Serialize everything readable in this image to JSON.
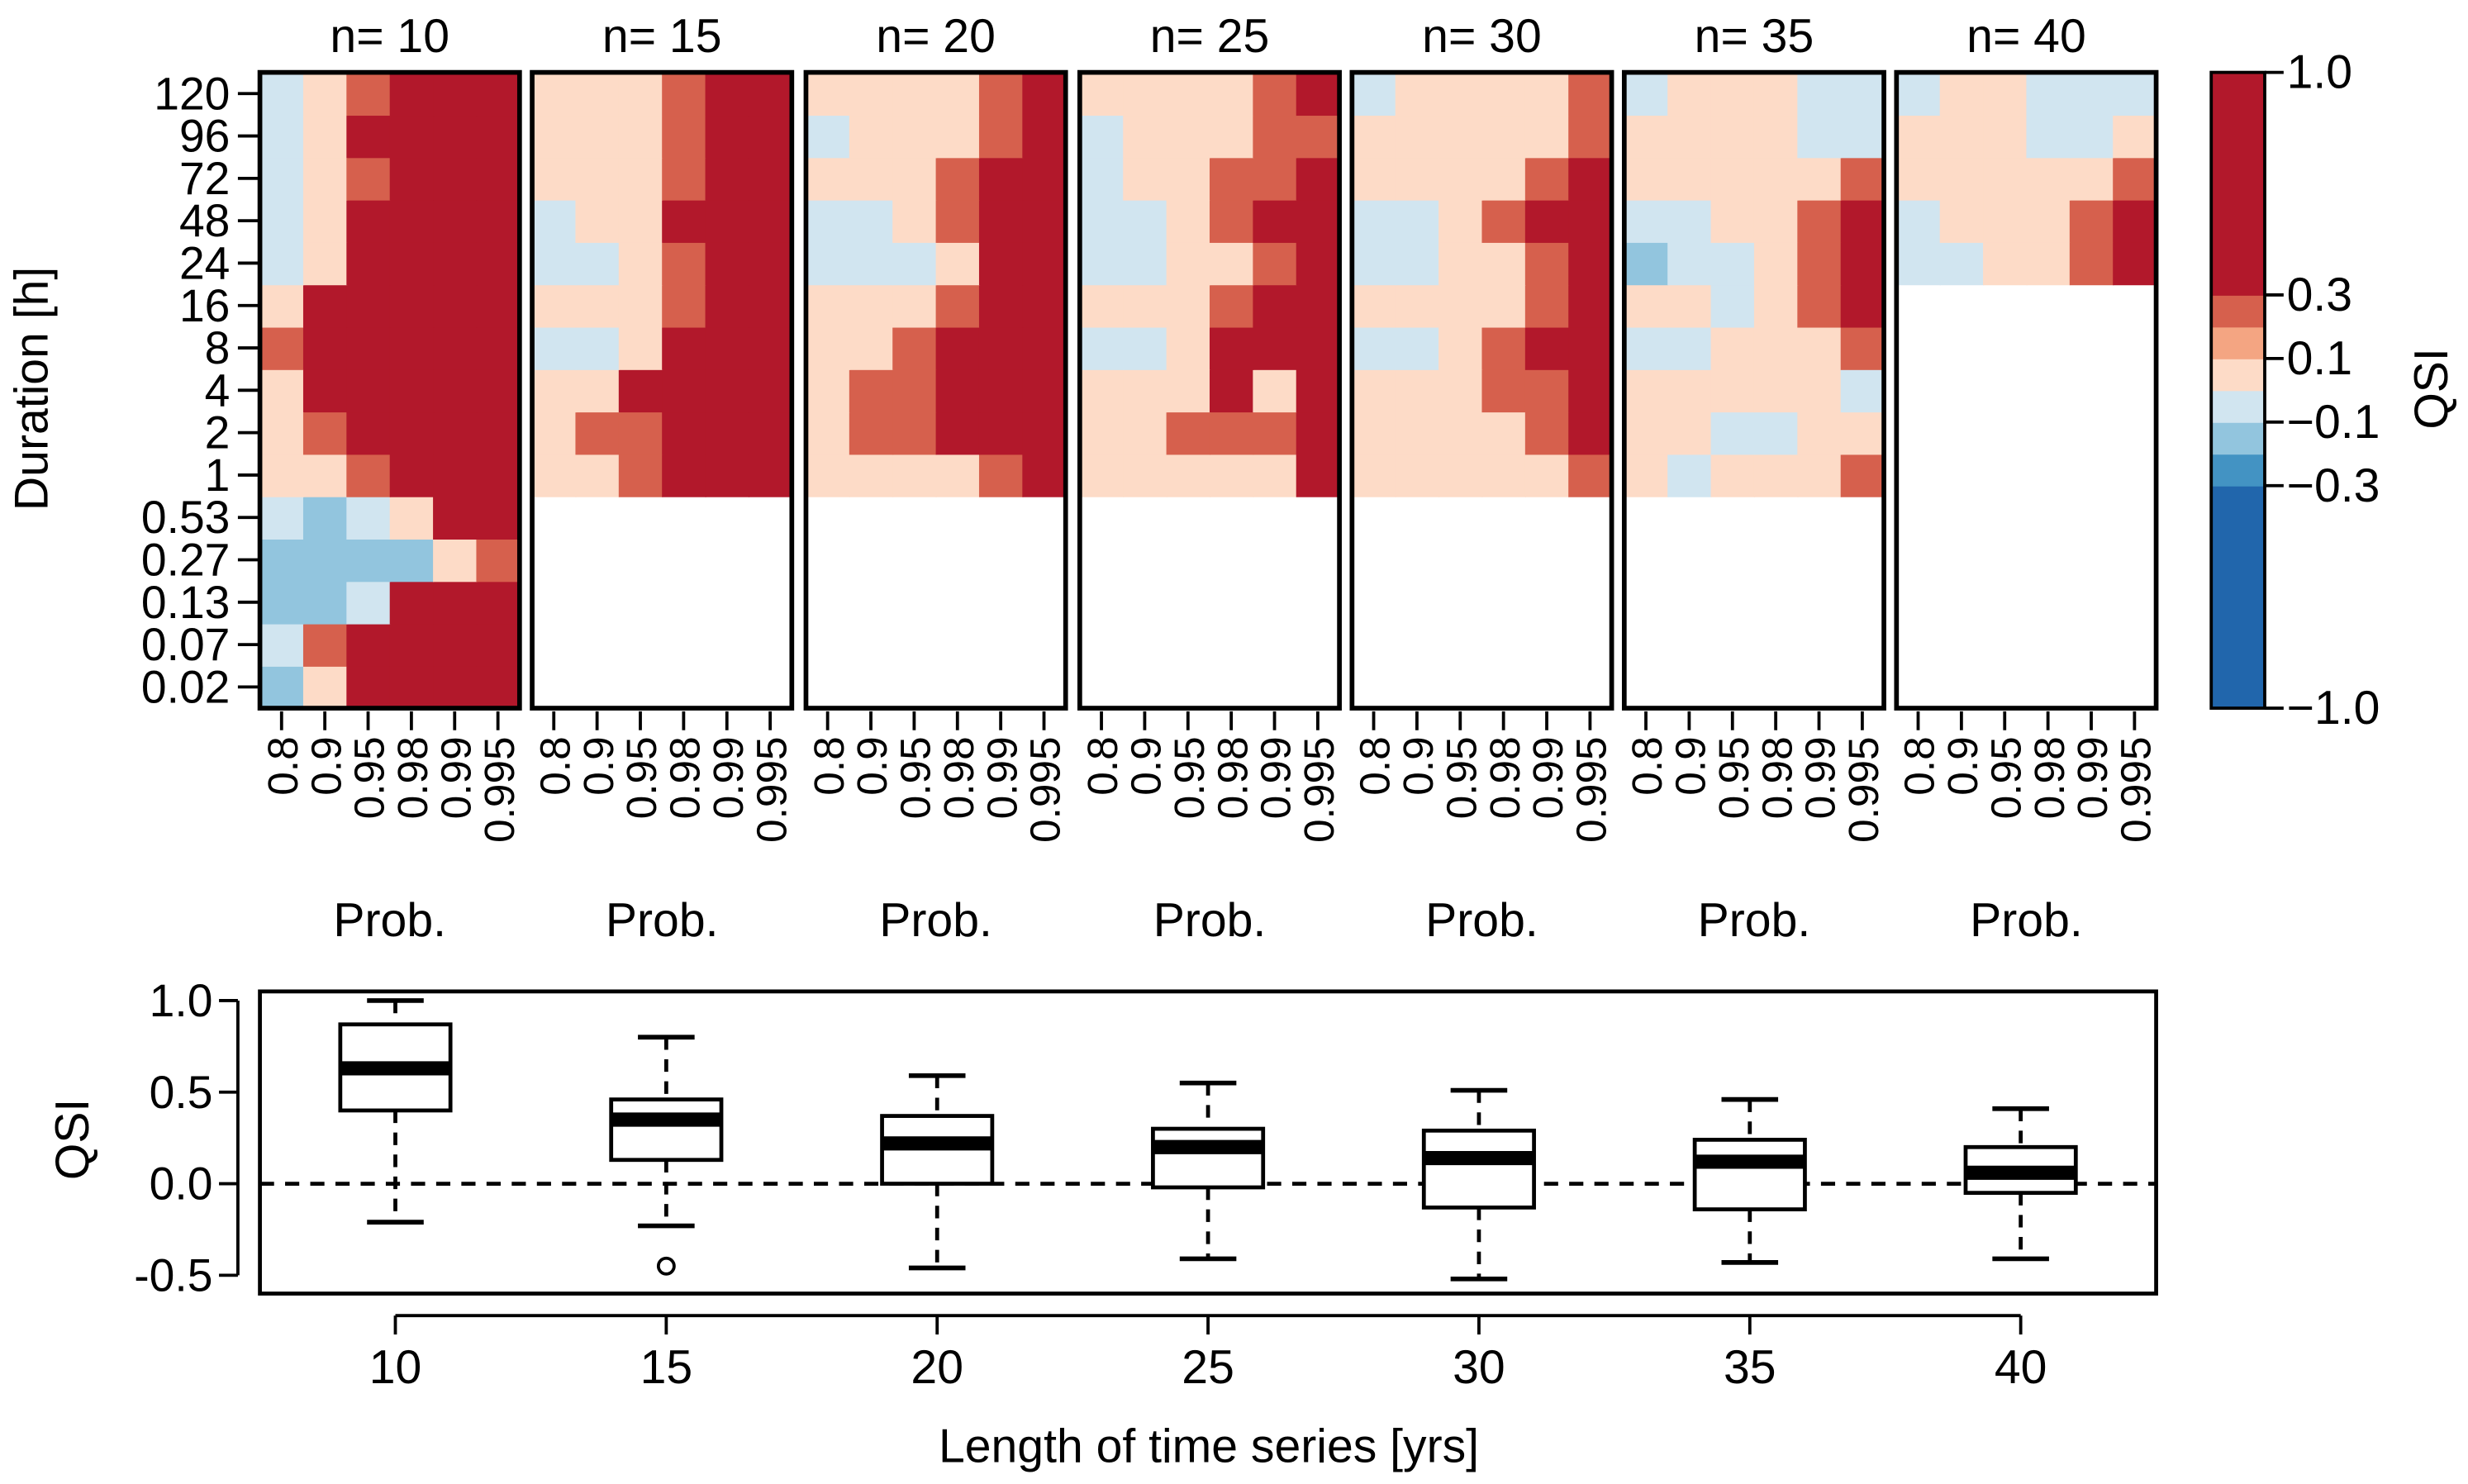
{
  "chart_data": [
    {
      "type": "heatmap",
      "ylabel": "Duration [h]",
      "xlabel": "Prob.",
      "y_categories": [
        "0.02",
        "0.07",
        "0.13",
        "0.27",
        "0.53",
        "1",
        "2",
        "4",
        "8",
        "16",
        "24",
        "48",
        "72",
        "96",
        "120"
      ],
      "x_categories": [
        "0.8",
        "0.9",
        "0.95",
        "0.98",
        "0.99",
        "0.995"
      ],
      "value_unit": "QSI",
      "row_order": "bottom-to-top (first row = 0.02 h)",
      "panels": [
        {
          "title": "n= 10",
          "values": [
            [
              -0.2,
              0.05,
              0.35,
              0.5,
              0.5,
              0.5
            ],
            [
              -0.05,
              0.2,
              0.5,
              0.5,
              0.5,
              0.5
            ],
            [
              -0.2,
              -0.2,
              -0.05,
              0.35,
              0.5,
              0.5
            ],
            [
              -0.2,
              -0.2,
              -0.2,
              -0.2,
              0.05,
              0.2
            ],
            [
              -0.05,
              -0.2,
              -0.05,
              0.05,
              0.35,
              0.5
            ],
            [
              0.05,
              0.05,
              0.2,
              0.5,
              0.5,
              0.5
            ],
            [
              0.05,
              0.2,
              0.35,
              0.5,
              0.5,
              0.5
            ],
            [
              0.05,
              0.5,
              0.5,
              0.5,
              0.5,
              0.5
            ],
            [
              0.2,
              0.35,
              0.5,
              0.5,
              0.5,
              0.5
            ],
            [
              0.05,
              0.35,
              0.5,
              0.5,
              0.5,
              0.5
            ],
            [
              -0.05,
              0.05,
              0.35,
              0.5,
              0.5,
              0.5
            ],
            [
              -0.05,
              0.05,
              0.35,
              0.5,
              0.5,
              0.5
            ],
            [
              -0.05,
              0.05,
              0.2,
              0.5,
              0.5,
              0.5
            ],
            [
              -0.05,
              0.05,
              0.5,
              0.5,
              0.5,
              0.5
            ],
            [
              -0.05,
              0.05,
              0.2,
              0.5,
              0.5,
              0.5
            ]
          ]
        },
        {
          "title": "n= 15",
          "values": [
            null,
            null,
            null,
            null,
            null,
            [
              0.05,
              0.05,
              0.2,
              0.35,
              0.5,
              0.5
            ],
            [
              0.05,
              0.2,
              0.2,
              0.5,
              0.5,
              0.5
            ],
            [
              0.05,
              0.05,
              0.35,
              0.5,
              0.5,
              0.5
            ],
            [
              -0.05,
              -0.05,
              0.05,
              0.35,
              0.5,
              0.5
            ],
            [
              0.05,
              0.05,
              0.05,
              0.2,
              0.35,
              0.5
            ],
            [
              -0.05,
              -0.05,
              0.05,
              0.2,
              0.5,
              0.5
            ],
            [
              -0.05,
              0.05,
              0.05,
              0.35,
              0.5,
              0.5
            ],
            [
              0.05,
              0.05,
              0.05,
              0.2,
              0.5,
              0.5
            ],
            [
              0.05,
              0.05,
              0.05,
              0.2,
              0.5,
              0.5
            ],
            [
              0.05,
              0.05,
              0.05,
              0.2,
              0.35,
              0.5
            ]
          ]
        },
        {
          "title": "n= 20",
          "values": [
            null,
            null,
            null,
            null,
            null,
            [
              0.05,
              0.05,
              0.05,
              0.05,
              0.2,
              0.35
            ],
            [
              0.05,
              0.2,
              0.2,
              0.35,
              0.35,
              0.5
            ],
            [
              0.05,
              0.2,
              0.2,
              0.35,
              0.35,
              0.5
            ],
            [
              0.05,
              0.05,
              0.2,
              0.5,
              0.5,
              0.5
            ],
            [
              0.05,
              0.05,
              0.05,
              0.2,
              0.35,
              0.5
            ],
            [
              -0.05,
              -0.05,
              -0.05,
              0.05,
              0.35,
              0.5
            ],
            [
              -0.05,
              -0.05,
              0.05,
              0.2,
              0.35,
              0.5
            ],
            [
              0.05,
              0.05,
              0.05,
              0.2,
              0.35,
              0.5
            ],
            [
              -0.05,
              0.05,
              0.05,
              0.05,
              0.2,
              0.35
            ],
            [
              0.05,
              0.05,
              0.05,
              0.05,
              0.2,
              0.35
            ]
          ]
        },
        {
          "title": "n= 25",
          "values": [
            null,
            null,
            null,
            null,
            null,
            [
              0.05,
              0.05,
              0.05,
              0.05,
              0.05,
              0.35
            ],
            [
              0.05,
              0.05,
              0.2,
              0.2,
              0.2,
              0.35
            ],
            [
              0.05,
              0.05,
              0.05,
              0.35,
              0.05,
              0.35
            ],
            [
              -0.05,
              -0.05,
              0.05,
              0.35,
              0.5,
              0.5
            ],
            [
              0.05,
              0.05,
              0.05,
              0.2,
              0.35,
              0.5
            ],
            [
              -0.05,
              -0.05,
              0.05,
              0.05,
              0.2,
              0.5
            ],
            [
              -0.05,
              -0.05,
              0.05,
              0.2,
              0.35,
              0.5
            ],
            [
              -0.05,
              0.05,
              0.05,
              0.2,
              0.2,
              0.35
            ],
            [
              -0.05,
              0.05,
              0.05,
              0.05,
              0.2,
              0.2
            ],
            [
              0.05,
              0.05,
              0.05,
              0.05,
              0.2,
              0.35
            ]
          ]
        },
        {
          "title": "n= 30",
          "values": [
            null,
            null,
            null,
            null,
            null,
            [
              0.05,
              0.05,
              0.05,
              0.05,
              0.05,
              0.2
            ],
            [
              0.05,
              0.05,
              0.05,
              0.05,
              0.2,
              0.35
            ],
            [
              0.05,
              0.05,
              0.05,
              0.2,
              0.2,
              0.35
            ],
            [
              -0.05,
              -0.05,
              0.05,
              0.2,
              0.35,
              0.5
            ],
            [
              0.05,
              0.05,
              0.05,
              0.05,
              0.2,
              0.35
            ],
            [
              -0.05,
              -0.05,
              0.05,
              0.05,
              0.2,
              0.35
            ],
            [
              -0.05,
              -0.05,
              0.05,
              0.2,
              0.35,
              0.5
            ],
            [
              0.05,
              0.05,
              0.05,
              0.05,
              0.2,
              0.35
            ],
            [
              0.05,
              0.05,
              0.05,
              0.05,
              0.05,
              0.2
            ],
            [
              -0.05,
              0.05,
              0.05,
              0.05,
              0.05,
              0.2
            ]
          ]
        },
        {
          "title": "n= 35",
          "values": [
            null,
            null,
            null,
            null,
            null,
            [
              0.05,
              -0.05,
              0.05,
              0.05,
              0.05,
              0.2
            ],
            [
              0.05,
              0.05,
              -0.05,
              -0.05,
              0.05,
              0.05
            ],
            [
              0.05,
              0.05,
              0.05,
              0.05,
              0.05,
              -0.05
            ],
            [
              -0.05,
              -0.05,
              0.05,
              0.05,
              0.05,
              0.2
            ],
            [
              0.05,
              0.05,
              -0.05,
              0.05,
              0.2,
              0.35
            ],
            [
              -0.2,
              -0.05,
              -0.05,
              0.05,
              0.2,
              0.35
            ],
            [
              -0.05,
              -0.05,
              0.05,
              0.05,
              0.2,
              0.35
            ],
            [
              0.05,
              0.05,
              0.05,
              0.05,
              0.05,
              0.2
            ],
            [
              0.05,
              0.05,
              0.05,
              0.05,
              -0.05,
              -0.05
            ],
            [
              -0.05,
              0.05,
              0.05,
              0.05,
              -0.05,
              -0.05
            ]
          ]
        },
        {
          "title": "n= 40",
          "values": [
            null,
            null,
            null,
            null,
            null,
            null,
            null,
            null,
            null,
            null,
            [
              -0.05,
              -0.05,
              0.05,
              0.05,
              0.2,
              0.35
            ],
            [
              -0.05,
              0.05,
              0.05,
              0.05,
              0.2,
              0.35
            ],
            [
              0.05,
              0.05,
              0.05,
              0.05,
              0.05,
              0.2
            ],
            [
              0.05,
              0.05,
              0.05,
              -0.05,
              -0.05,
              0.05
            ],
            [
              -0.05,
              0.05,
              0.05,
              -0.05,
              -0.05,
              -0.05
            ]
          ]
        }
      ],
      "colorbar": {
        "label": "QSI",
        "tick_labels": [
          "1.0",
          "0.3",
          "0.1",
          "−0.1",
          "−0.3",
          "−1.0"
        ],
        "tick_values": [
          1.0,
          0.3,
          0.1,
          -0.1,
          -0.3,
          -1.0
        ],
        "bins": [
          {
            "from": -1.0,
            "to": -0.3,
            "color": "#2166ac"
          },
          {
            "from": -0.3,
            "to": -0.2,
            "color": "#4393c3"
          },
          {
            "from": -0.2,
            "to": -0.1,
            "color": "#92c5de"
          },
          {
            "from": -0.1,
            "to": 0.0,
            "color": "#d1e5f0"
          },
          {
            "from": 0.0,
            "to": 0.1,
            "color": "#fddbc7"
          },
          {
            "from": 0.1,
            "to": 0.2,
            "color": "#f4a582"
          },
          {
            "from": 0.2,
            "to": 0.3,
            "color": "#d6604d"
          },
          {
            "from": 0.3,
            "to": 1.0,
            "color": "#b2182b"
          }
        ]
      }
    },
    {
      "type": "box",
      "xlabel": "Length of time series [yrs]",
      "ylabel": "QSI",
      "categories": [
        "10",
        "15",
        "20",
        "25",
        "30",
        "35",
        "40"
      ],
      "ylim": [
        -0.6,
        1.05
      ],
      "yticks": [
        "-0.5",
        "0.0",
        "0.5",
        "1.0"
      ],
      "ytick_values": [
        -0.5,
        0.0,
        0.5,
        1.0
      ],
      "reference_line": {
        "y": 0.0,
        "style": "dashed"
      },
      "boxes": [
        {
          "category": "10",
          "whisker_low": -0.21,
          "q1": 0.4,
          "median": 0.63,
          "q3": 0.87,
          "whisker_high": 1.0,
          "outliers": []
        },
        {
          "category": "15",
          "whisker_low": -0.23,
          "q1": 0.13,
          "median": 0.35,
          "q3": 0.46,
          "whisker_high": 0.8,
          "outliers": [
            -0.45
          ]
        },
        {
          "category": "20",
          "whisker_low": -0.46,
          "q1": 0.0,
          "median": 0.22,
          "q3": 0.37,
          "whisker_high": 0.59,
          "outliers": []
        },
        {
          "category": "25",
          "whisker_low": -0.41,
          "q1": -0.02,
          "median": 0.2,
          "q3": 0.3,
          "whisker_high": 0.55,
          "outliers": []
        },
        {
          "category": "30",
          "whisker_low": -0.52,
          "q1": -0.13,
          "median": 0.14,
          "q3": 0.29,
          "whisker_high": 0.51,
          "outliers": []
        },
        {
          "category": "35",
          "whisker_low": -0.43,
          "q1": -0.14,
          "median": 0.12,
          "q3": 0.24,
          "whisker_high": 0.46,
          "outliers": []
        },
        {
          "category": "40",
          "whisker_low": -0.41,
          "q1": -0.05,
          "median": 0.06,
          "q3": 0.2,
          "whisker_high": 0.41,
          "outliers": []
        }
      ]
    }
  ]
}
